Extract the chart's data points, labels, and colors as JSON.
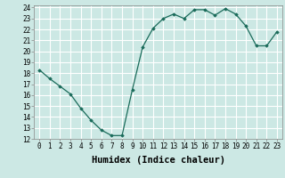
{
  "x": [
    0,
    1,
    2,
    3,
    4,
    5,
    6,
    7,
    8,
    9,
    10,
    11,
    12,
    13,
    14,
    15,
    16,
    17,
    18,
    19,
    20,
    21,
    22,
    23
  ],
  "y": [
    18.3,
    17.5,
    16.8,
    16.1,
    14.8,
    13.7,
    12.8,
    12.3,
    12.3,
    16.5,
    20.4,
    22.1,
    23.0,
    23.4,
    23.0,
    23.8,
    23.8,
    23.3,
    23.9,
    23.4,
    22.3,
    20.5,
    20.5,
    21.8
  ],
  "xlabel": "Humidex (Indice chaleur)",
  "xlim": [
    -0.5,
    23.5
  ],
  "ylim": [
    12,
    24.2
  ],
  "yticks": [
    12,
    13,
    14,
    15,
    16,
    17,
    18,
    19,
    20,
    21,
    22,
    23,
    24
  ],
  "xticks": [
    0,
    1,
    2,
    3,
    4,
    5,
    6,
    7,
    8,
    9,
    10,
    11,
    12,
    13,
    14,
    15,
    16,
    17,
    18,
    19,
    20,
    21,
    22,
    23
  ],
  "line_color": "#1a6b5a",
  "marker": "D",
  "marker_size": 1.8,
  "bg_color": "#cce8e4",
  "grid_color": "#ffffff",
  "xlabel_fontsize": 7.5,
  "tick_fontsize": 5.5
}
